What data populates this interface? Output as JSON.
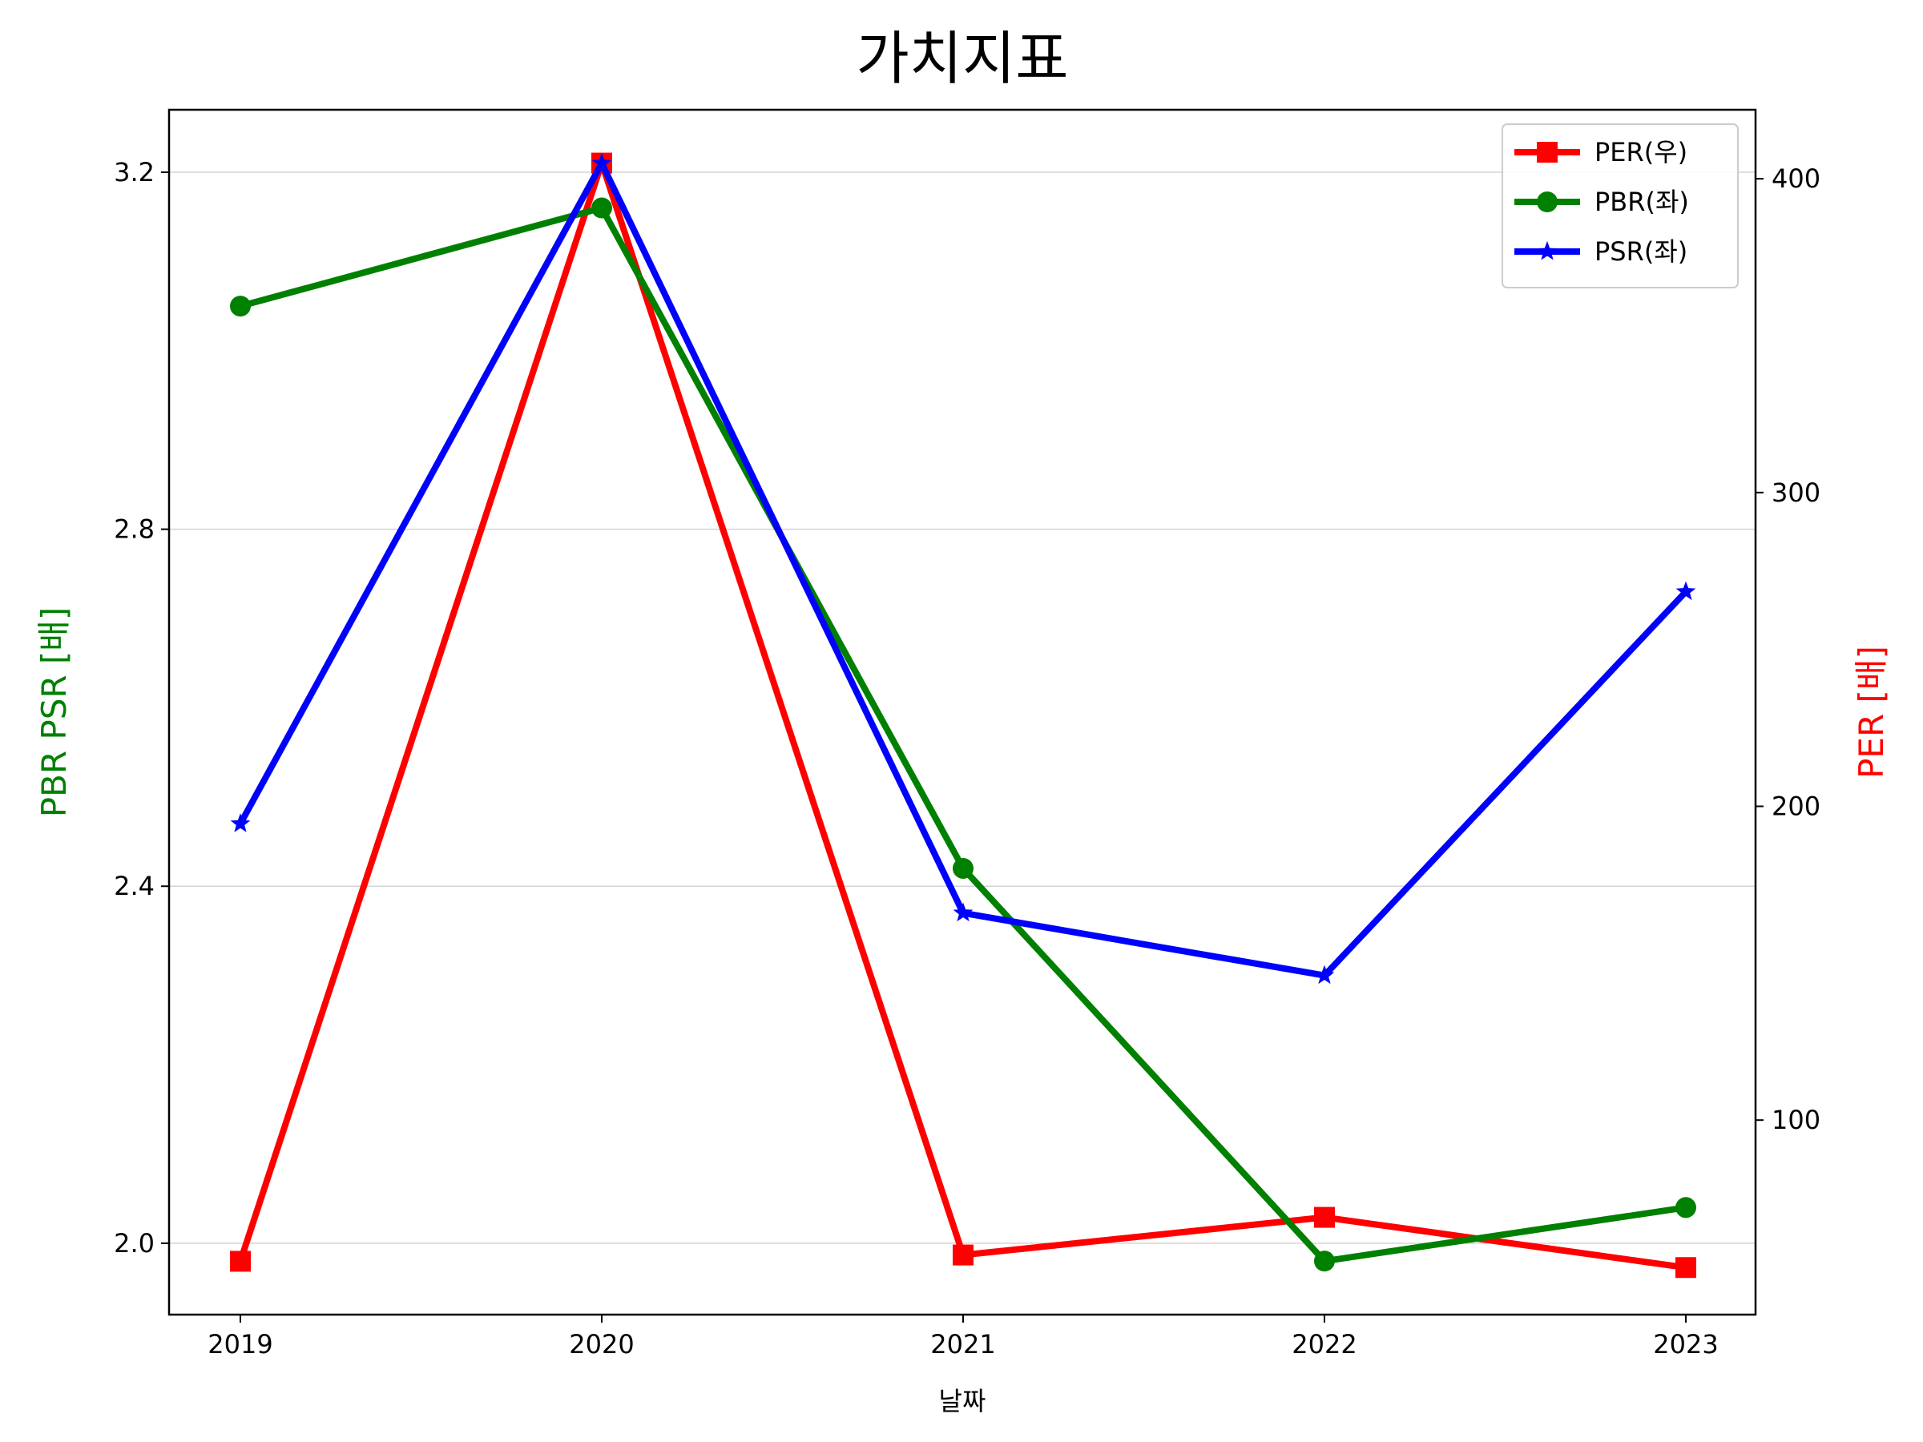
{
  "chart_data": {
    "type": "line",
    "title": "가치지표",
    "xlabel": "날짜",
    "ylabel_left": "PBR PSR [배]",
    "ylabel_right": "PER [배]",
    "categories": [
      "2019",
      "2020",
      "2021",
      "2022",
      "2023"
    ],
    "left_axis": {
      "ylim": [
        1.92,
        3.27
      ],
      "ticks": [
        2.0,
        2.4,
        2.8,
        3.2
      ],
      "tick_labels": [
        "2.0",
        "2.4",
        "2.8",
        "3.2"
      ]
    },
    "right_axis": {
      "ylim": [
        38,
        422
      ],
      "ticks": [
        100,
        200,
        300,
        400
      ],
      "tick_labels": [
        "100",
        "200",
        "300",
        "400"
      ]
    },
    "grid": "horizontal (left axis)",
    "legend_position": "upper right",
    "series": [
      {
        "name": "PER(우)",
        "axis": "right",
        "color": "#ff0000",
        "marker": "square",
        "values": [
          55,
          405,
          57,
          69,
          53
        ]
      },
      {
        "name": "PBR(좌)",
        "axis": "left",
        "color": "#008000",
        "marker": "circle",
        "values": [
          3.05,
          3.16,
          2.42,
          1.98,
          2.04
        ]
      },
      {
        "name": "PSR(좌)",
        "axis": "left",
        "color": "#0000ff",
        "marker": "star",
        "values": [
          2.47,
          3.21,
          2.37,
          2.3,
          2.73
        ]
      }
    ],
    "colors": {
      "left_label": "#008000",
      "right_label": "#ff0000"
    }
  }
}
